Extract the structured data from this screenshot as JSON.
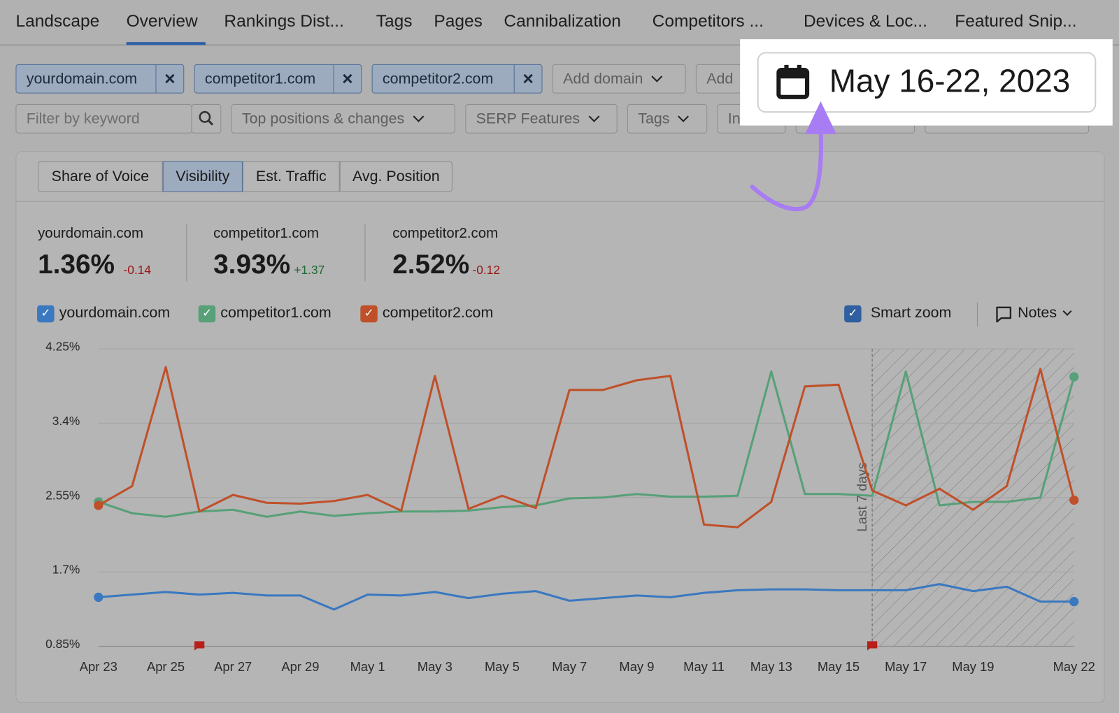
{
  "nav_tabs": [
    "Landscape",
    "Overview",
    "Rankings Dist...",
    "Tags",
    "Pages",
    "Cannibalization",
    "Competitors ...",
    "Devices & Loc...",
    "Featured Snip..."
  ],
  "domain_chips": [
    "yourdomain.com",
    "competitor1.com",
    "competitor2.com"
  ],
  "add_domain": [
    "Add domain",
    "Add"
  ],
  "filters": {
    "keyword_placeholder": "Filter by keyword",
    "dropdowns": [
      "Top positions & changes",
      "SERP Features",
      "Tags",
      "In"
    ]
  },
  "date_range": "May 16-22, 2023",
  "metric_tabs": [
    "Share of Voice",
    "Visibility",
    "Est. Traffic",
    "Avg. Position"
  ],
  "stats": [
    {
      "domain": "yourdomain.com",
      "value": "1.36%",
      "change": "-0.14"
    },
    {
      "domain": "competitor1.com",
      "value": "3.93%",
      "change": "+1.37"
    },
    {
      "domain": "competitor2.com",
      "value": "2.52%",
      "change": "-0.12"
    }
  ],
  "controls": {
    "smart_zoom": "Smart zoom",
    "notes": "Notes"
  },
  "chart_data": {
    "type": "line",
    "categories": [
      "Apr 23",
      null,
      "Apr 25",
      null,
      "Apr 27",
      null,
      "Apr 29",
      null,
      "May 1",
      null,
      "May 3",
      null,
      "May 5",
      null,
      "May 7",
      null,
      "May 9",
      null,
      "May 11",
      null,
      "May 13",
      null,
      "May 15",
      null,
      "May 17",
      null,
      "May 19",
      null,
      null,
      "May 22"
    ],
    "series": [
      {
        "name": "yourdomain.com",
        "color": "#3a78c0",
        "values": [
          1.41,
          1.44,
          1.47,
          1.44,
          1.46,
          1.43,
          1.43,
          1.27,
          1.44,
          1.43,
          1.47,
          1.4,
          1.45,
          1.48,
          1.37,
          1.4,
          1.43,
          1.41,
          1.46,
          1.49,
          1.5,
          1.5,
          1.49,
          1.49,
          1.49,
          1.56,
          1.48,
          1.53,
          1.36,
          1.36
        ]
      },
      {
        "name": "competitor1.com",
        "color": "#57a078",
        "values": [
          2.5,
          2.37,
          2.33,
          2.39,
          2.41,
          2.33,
          2.39,
          2.34,
          2.37,
          2.39,
          2.39,
          2.4,
          2.44,
          2.46,
          2.54,
          2.55,
          2.59,
          2.56,
          2.56,
          2.57,
          3.99,
          2.59,
          2.59,
          2.57,
          3.99,
          2.46,
          2.5,
          2.5,
          2.55,
          3.93
        ]
      },
      {
        "name": "competitor2.com",
        "color": "#c0502a",
        "values": [
          2.46,
          2.68,
          4.04,
          2.39,
          2.58,
          2.49,
          2.48,
          2.51,
          2.58,
          2.4,
          3.94,
          2.42,
          2.57,
          2.43,
          3.78,
          3.78,
          3.89,
          3.94,
          2.24,
          2.21,
          2.5,
          3.82,
          3.84,
          2.63,
          2.46,
          2.65,
          2.41,
          2.68,
          4.02,
          2.52
        ]
      }
    ],
    "ylim": [
      0.85,
      4.25
    ],
    "yticks": [
      {
        "value": 0.85,
        "label": "0.85%"
      },
      {
        "value": 1.7,
        "label": "1.7%"
      },
      {
        "value": 2.55,
        "label": "2.55%"
      },
      {
        "value": 3.4,
        "label": "3.4%"
      },
      {
        "value": 4.25,
        "label": "4.25%"
      }
    ],
    "grid": true,
    "annotation": "Last 7 days"
  }
}
